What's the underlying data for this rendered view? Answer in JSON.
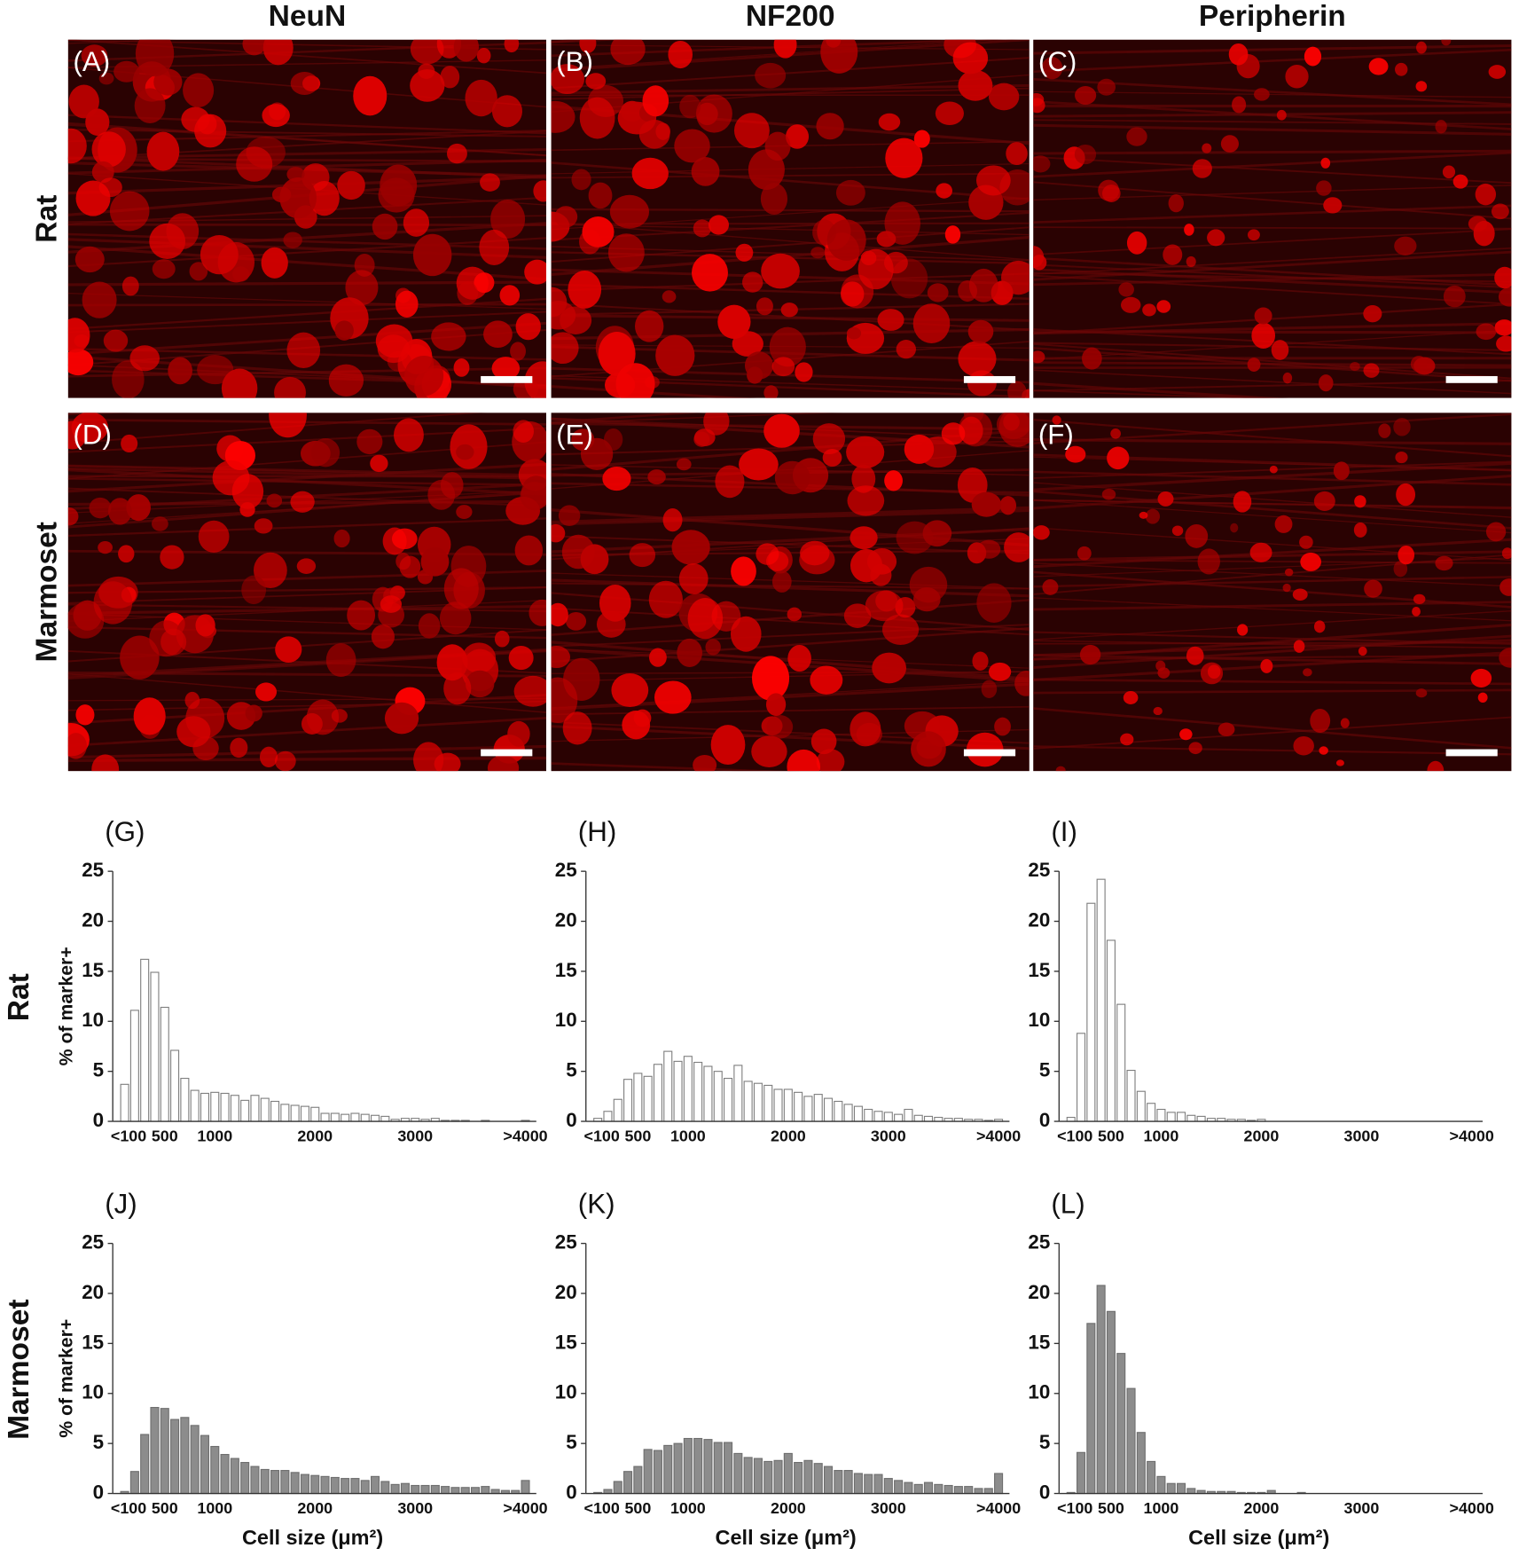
{
  "column_headers": [
    "NeuN",
    "NF200",
    "Peripherin"
  ],
  "image_row_labels": [
    "Rat",
    "Marmoset"
  ],
  "image_panels": [
    "(A)",
    "(B)",
    "(C)",
    "(D)",
    "(E)",
    "(F)"
  ],
  "histogram_row_labels": [
    "Rat",
    "Marmoset"
  ],
  "chart_data": [
    {
      "type": "bar",
      "panel_label": "(G)",
      "y_label": "% of marker+",
      "color": "#ffffff",
      "edgecolor": "#7f7f7f",
      "categories": [
        "<100",
        null,
        null,
        null,
        "500",
        null,
        null,
        null,
        null,
        "1000",
        null,
        null,
        null,
        null,
        null,
        null,
        null,
        null,
        null,
        "2000",
        null,
        null,
        null,
        null,
        null,
        null,
        null,
        null,
        null,
        "3000",
        null,
        null,
        null,
        null,
        null,
        null,
        null,
        null,
        null,
        null,
        ">4000"
      ],
      "values": [
        3.7,
        11.1,
        16.2,
        14.9,
        11.4,
        7.1,
        4.3,
        3.1,
        2.8,
        2.9,
        2.8,
        2.6,
        2.1,
        2.6,
        2.3,
        2.0,
        1.7,
        1.6,
        1.5,
        1.4,
        0.8,
        0.8,
        0.7,
        0.8,
        0.7,
        0.6,
        0.5,
        0.2,
        0.3,
        0.3,
        0.2,
        0.3,
        0.1,
        0.1,
        0.1,
        0,
        0.1,
        0,
        0,
        0,
        0.1
      ],
      "ylim": [
        0,
        25
      ],
      "yticks": [
        0,
        5,
        10,
        15,
        20,
        25
      ]
    },
    {
      "type": "bar",
      "panel_label": "(H)",
      "color": "#ffffff",
      "edgecolor": "#7f7f7f",
      "categories": [
        "<100",
        null,
        null,
        null,
        "500",
        null,
        null,
        null,
        null,
        "1000",
        null,
        null,
        null,
        null,
        null,
        null,
        null,
        null,
        null,
        "2000",
        null,
        null,
        null,
        null,
        null,
        null,
        null,
        null,
        null,
        "3000",
        null,
        null,
        null,
        null,
        null,
        null,
        null,
        null,
        null,
        null,
        ">4000"
      ],
      "values": [
        0.3,
        1.0,
        2.2,
        4.2,
        4.8,
        4.5,
        5.7,
        7.0,
        6.0,
        6.5,
        5.9,
        5.5,
        5.0,
        4.3,
        5.6,
        4.0,
        3.8,
        3.6,
        3.2,
        3.2,
        2.9,
        2.5,
        2.7,
        2.3,
        2.0,
        1.7,
        1.5,
        1.2,
        1.0,
        0.9,
        0.7,
        1.2,
        0.6,
        0.5,
        0.4,
        0.3,
        0.3,
        0.2,
        0.2,
        0.1,
        0.2
      ],
      "ylim": [
        0,
        25
      ],
      "yticks": [
        0,
        5,
        10,
        15,
        20,
        25
      ]
    },
    {
      "type": "bar",
      "panel_label": "(I)",
      "color": "#ffffff",
      "edgecolor": "#7f7f7f",
      "categories": [
        "<100",
        null,
        null,
        null,
        "500",
        null,
        null,
        null,
        null,
        "1000",
        null,
        null,
        null,
        null,
        null,
        null,
        null,
        null,
        null,
        "2000",
        null,
        null,
        null,
        null,
        null,
        null,
        null,
        null,
        null,
        "3000",
        null,
        null,
        null,
        null,
        null,
        null,
        null,
        null,
        null,
        null,
        ">4000"
      ],
      "values": [
        0.4,
        8.8,
        21.8,
        24.2,
        18.1,
        11.7,
        5.1,
        3.0,
        1.8,
        1.2,
        0.9,
        0.9,
        0.6,
        0.5,
        0.3,
        0.3,
        0.2,
        0.2,
        0.1,
        0.2,
        0,
        0,
        0,
        0,
        0,
        0,
        0,
        0,
        0,
        0,
        0,
        0,
        0,
        0,
        0,
        0,
        0,
        0,
        0,
        0,
        0
      ],
      "ylim": [
        0,
        25
      ],
      "yticks": [
        0,
        5,
        10,
        15,
        20,
        25
      ]
    },
    {
      "type": "bar",
      "panel_label": "(J)",
      "y_label": "% of marker+",
      "x_label": "Cell size (μm²)",
      "color": "#8c8c8c",
      "edgecolor": "#6e6e6e",
      "categories": [
        "<100",
        null,
        null,
        null,
        "500",
        null,
        null,
        null,
        null,
        "1000",
        null,
        null,
        null,
        null,
        null,
        null,
        null,
        null,
        null,
        "2000",
        null,
        null,
        null,
        null,
        null,
        null,
        null,
        null,
        null,
        "3000",
        null,
        null,
        null,
        null,
        null,
        null,
        null,
        null,
        null,
        null,
        ">4000"
      ],
      "values": [
        0.2,
        2.2,
        5.9,
        8.6,
        8.5,
        7.4,
        7.6,
        6.8,
        5.8,
        4.7,
        3.9,
        3.5,
        3.1,
        2.7,
        2.4,
        2.3,
        2.3,
        2.1,
        1.9,
        1.8,
        1.7,
        1.6,
        1.5,
        1.5,
        1.3,
        1.7,
        1.2,
        0.9,
        1.0,
        0.8,
        0.8,
        0.8,
        0.7,
        0.6,
        0.6,
        0.6,
        0.7,
        0.4,
        0.3,
        0.3,
        1.3
      ],
      "ylim": [
        0,
        25
      ],
      "yticks": [
        0,
        5,
        10,
        15,
        20,
        25
      ]
    },
    {
      "type": "bar",
      "panel_label": "(K)",
      "x_label": "Cell size (μm²)",
      "color": "#8c8c8c",
      "edgecolor": "#6e6e6e",
      "categories": [
        "<100",
        null,
        null,
        null,
        "500",
        null,
        null,
        null,
        null,
        "1000",
        null,
        null,
        null,
        null,
        null,
        null,
        null,
        null,
        null,
        "2000",
        null,
        null,
        null,
        null,
        null,
        null,
        null,
        null,
        null,
        "3000",
        null,
        null,
        null,
        null,
        null,
        null,
        null,
        null,
        null,
        null,
        ">4000"
      ],
      "values": [
        0.1,
        0.4,
        1.2,
        2.2,
        2.7,
        4.4,
        4.3,
        4.8,
        5.0,
        5.5,
        5.5,
        5.4,
        5.1,
        5.1,
        4.0,
        3.6,
        3.5,
        3.2,
        3.3,
        4.0,
        3.1,
        3.3,
        3.0,
        2.7,
        2.3,
        2.3,
        2.0,
        1.9,
        1.9,
        1.5,
        1.3,
        1.1,
        0.9,
        1.1,
        0.9,
        0.8,
        0.7,
        0.7,
        0.5,
        0.5,
        2.0
      ],
      "ylim": [
        0,
        25
      ],
      "yticks": [
        0,
        5,
        10,
        15,
        20,
        25
      ]
    },
    {
      "type": "bar",
      "panel_label": "(L)",
      "x_label": "Cell size (μm²)",
      "color": "#8c8c8c",
      "edgecolor": "#6e6e6e",
      "categories": [
        "<100",
        null,
        null,
        null,
        "500",
        null,
        null,
        null,
        null,
        "1000",
        null,
        null,
        null,
        null,
        null,
        null,
        null,
        null,
        null,
        "2000",
        null,
        null,
        null,
        null,
        null,
        null,
        null,
        null,
        null,
        "3000",
        null,
        null,
        null,
        null,
        null,
        null,
        null,
        null,
        null,
        null,
        ">4000"
      ],
      "values": [
        0.1,
        4.1,
        17.0,
        20.8,
        18.2,
        14.0,
        10.5,
        6.1,
        3.2,
        1.7,
        1.0,
        1.0,
        0.5,
        0.3,
        0.2,
        0.2,
        0.2,
        0.1,
        0.1,
        0.1,
        0.3,
        0,
        0,
        0.1,
        0,
        0,
        0,
        0,
        0,
        0,
        0,
        0,
        0,
        0,
        0,
        0,
        0,
        0,
        0,
        0,
        0
      ],
      "ylim": [
        0,
        25
      ],
      "yticks": [
        0,
        5,
        10,
        15,
        20,
        25
      ]
    }
  ]
}
